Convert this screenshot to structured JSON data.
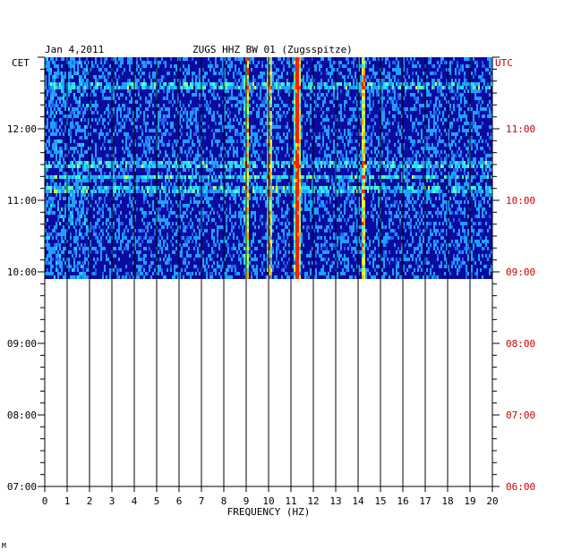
{
  "header": {
    "date": "Jan 4,2011",
    "station": "ZUGS HHZ BW 01 (Zugsspitze)"
  },
  "axes": {
    "left_zone": "CET",
    "right_zone": "UTC",
    "right_color": "#cc0000"
  },
  "footer_mark": "M",
  "chart_data": {
    "type": "heatmap",
    "title": "ZUGS HHZ BW 01 (Zugsspitze)",
    "xlabel": "FREQUENCY (HZ)",
    "ylabel": "",
    "xlim": [
      0,
      20
    ],
    "x_ticks": [
      0,
      1,
      2,
      3,
      4,
      5,
      6,
      7,
      8,
      9,
      10,
      11,
      12,
      13,
      14,
      15,
      16,
      17,
      18,
      19,
      20
    ],
    "time_range_cet_hours": [
      7.0,
      13.0
    ],
    "left_ticks_cet": [
      "12:00",
      "11:00",
      "10:00",
      "09:00",
      "08:00",
      "07:00"
    ],
    "right_ticks_utc": [
      "11:00",
      "10:00",
      "09:00",
      "08:00",
      "07:00",
      "06:00"
    ],
    "data_start_cet_hours": 9.9,
    "data_end_cet_hours": 13.0,
    "background_color": "#0a0aa0",
    "persistent_peaks_hz": [
      9.0,
      10.0,
      11.2,
      11.3,
      14.2
    ],
    "broadband_rows_cet_hours": [
      12.62,
      11.52,
      11.35,
      11.17
    ]
  }
}
